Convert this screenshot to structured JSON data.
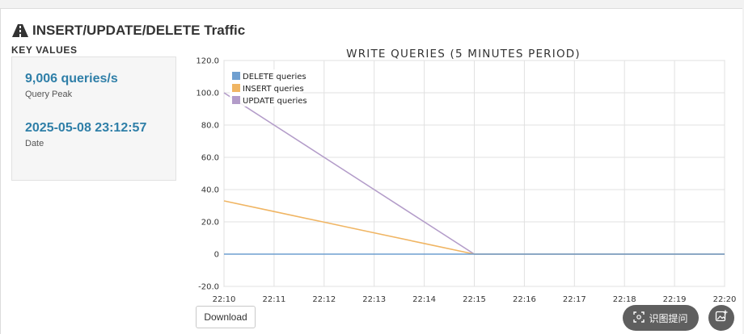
{
  "header": {
    "title": "INSERT/UPDATE/DELETE Traffic",
    "icon": "road-icon"
  },
  "key_values": {
    "heading": "KEY VALUES",
    "items": [
      {
        "value": "9,006 queries/s",
        "label": "Query Peak"
      },
      {
        "value": "2025-05-08 23:12:57",
        "label": "Date"
      }
    ]
  },
  "download_label": "Download",
  "overlay": {
    "ocr_label": "识图提问",
    "ocr_icon": "scan-icon",
    "image_icon": "image-add-icon"
  },
  "chart_data": {
    "type": "line",
    "title": "WRITE QUERIES (5 MINUTES PERIOD)",
    "x": [
      "22:10",
      "22:11",
      "22:12",
      "22:13",
      "22:14",
      "22:15",
      "22:16",
      "22:17",
      "22:18",
      "22:19",
      "22:20"
    ],
    "ytick_labels": [
      "120.0",
      "100.0",
      "80.0",
      "60.0",
      "40.0",
      "20.0",
      "0",
      "-20.0"
    ],
    "ylim": [
      -20,
      120
    ],
    "grid": true,
    "legend_position": "top-left",
    "series": [
      {
        "name": "DELETE queries",
        "color": "#6f9fd0",
        "values": [
          0,
          0,
          0,
          0,
          0,
          0,
          0,
          0,
          0,
          0,
          0
        ]
      },
      {
        "name": "INSERT queries",
        "color": "#f0b563",
        "values": [
          33,
          26.4,
          19.8,
          13.2,
          6.6,
          0,
          0,
          0,
          0,
          0,
          0
        ]
      },
      {
        "name": "UPDATE queries",
        "color": "#b39cc9",
        "values": [
          100,
          80,
          60,
          40,
          20,
          0,
          0,
          0,
          0,
          0,
          0
        ]
      }
    ]
  }
}
